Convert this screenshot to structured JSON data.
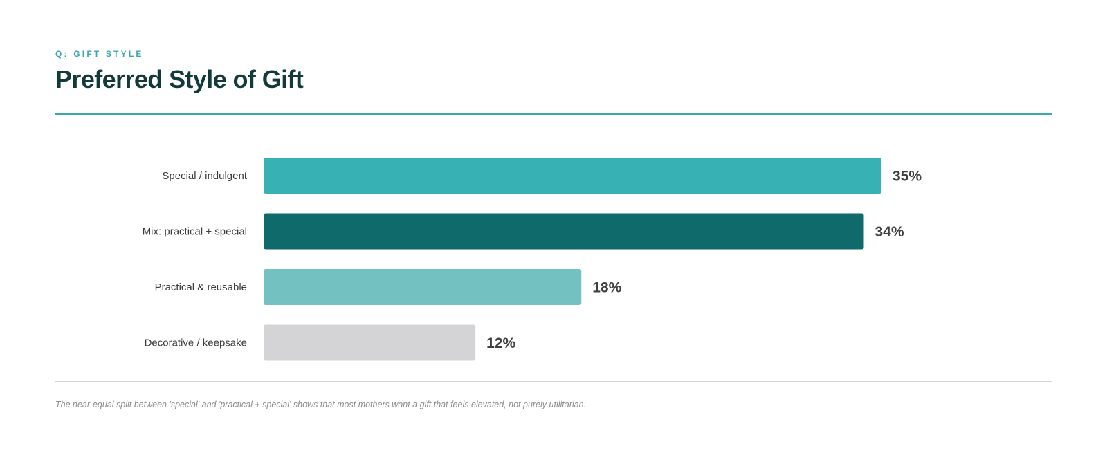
{
  "header": {
    "eyebrow": "Q: GIFT STYLE",
    "title": "Preferred Style of Gift"
  },
  "chart_data": {
    "type": "bar",
    "orientation": "horizontal",
    "title": "Preferred Style of Gift",
    "categories": [
      "Special / indulgent",
      "Mix: practical + special",
      "Practical & reusable",
      "Decorative / keepsake"
    ],
    "values": [
      35,
      34,
      18,
      12
    ],
    "value_labels": [
      "35%",
      "34%",
      "18%",
      "12%"
    ],
    "colors": [
      "#37b1b4",
      "#0f6a6c",
      "#74c1c1",
      "#d4d4d6"
    ],
    "xlim": [
      0,
      35
    ],
    "unit": "%",
    "grid": false,
    "legend": "none"
  },
  "footnote": "The near-equal split between 'special' and 'practical + special' shows that most mothers want a gift that feels elevated, not purely utilitarian.",
  "colors": {
    "accent": "#3aa9ae",
    "title": "#133a3b",
    "label_text": "#3b3b3b",
    "value_text": "#404040",
    "footnote_text": "#8d8d8d",
    "divider": "#d4d4d4"
  }
}
